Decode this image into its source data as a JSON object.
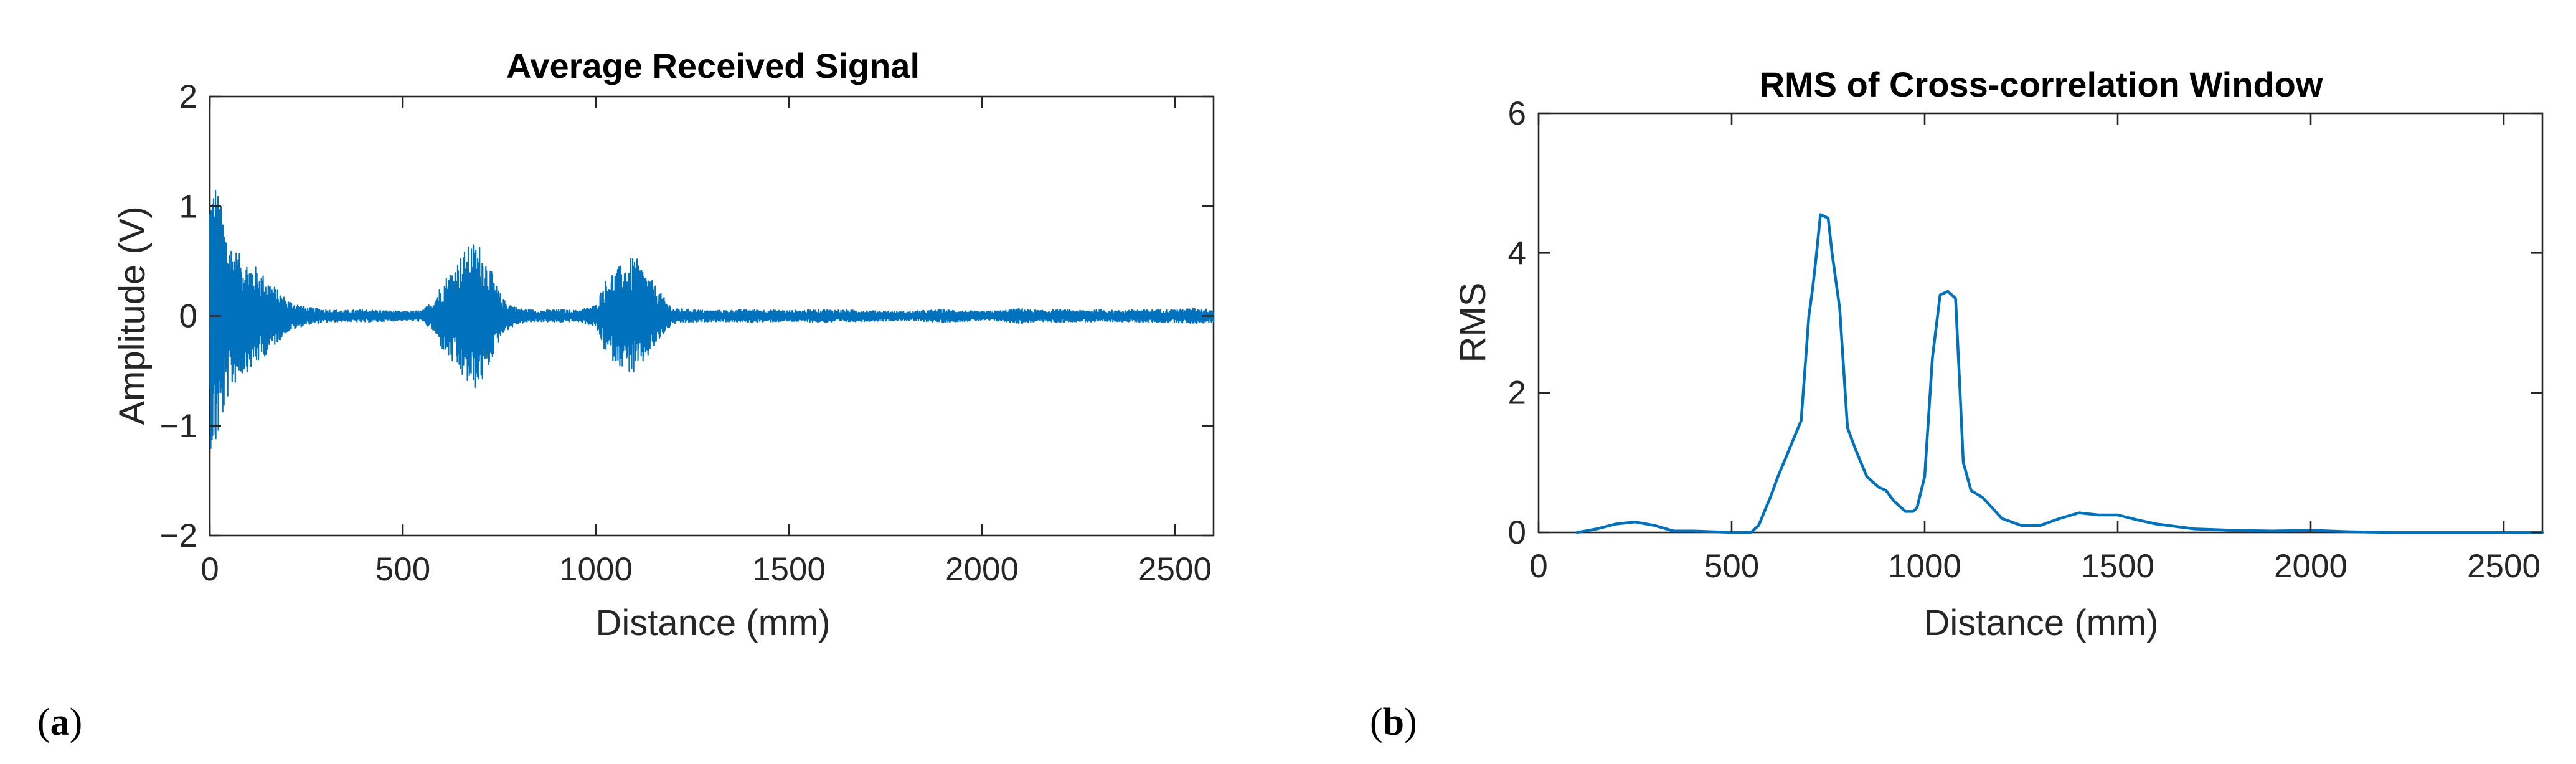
{
  "chart_data": [
    {
      "panel_label": "(a)",
      "panel_letter": "a",
      "type": "line",
      "title": "Average Received Signal",
      "xlabel": "Distance (mm)",
      "ylabel": "Amplitude (V)",
      "xlim": [
        0,
        2600
      ],
      "ylim": [
        -2,
        2
      ],
      "xticks": [
        0,
        500,
        1000,
        1500,
        2000,
        2500
      ],
      "xtick_labels": [
        "0",
        "500",
        "1000",
        "1500",
        "2000",
        "2500"
      ],
      "yticks": [
        -2,
        -1,
        0,
        1,
        2
      ],
      "ytick_labels": [
        "−2",
        "−1",
        "0",
        "1",
        "2"
      ],
      "grid": false,
      "series_color": "#0072BD",
      "series": [
        {
          "style": "oscillating signal, envelope amplitude (V) vs distance (mm)",
          "envelope": {
            "x": [
              0,
              15,
              30,
              50,
              80,
              120,
              160,
              200,
              250,
              300,
              350,
              400,
              450,
              500,
              550,
              580,
              600,
              630,
              660,
              680,
              700,
              720,
              740,
              760,
              800,
              850,
              900,
              950,
              1000,
              1020,
              1040,
              1060,
              1080,
              1100,
              1120,
              1140,
              1160,
              1180,
              1200,
              1250,
              1300,
              1400,
              1500,
              1600,
              1700,
              1800,
              1850,
              1900,
              1950,
              2000,
              2050,
              2100,
              2150,
              2200,
              2250,
              2300,
              2350,
              2400,
              2450,
              2500,
              2550,
              2600
            ],
            "y": [
              1.2,
              1.25,
              1.0,
              0.7,
              0.55,
              0.45,
              0.3,
              0.15,
              0.08,
              0.06,
              0.05,
              0.06,
              0.05,
              0.04,
              0.05,
              0.15,
              0.3,
              0.45,
              0.6,
              0.68,
              0.65,
              0.5,
              0.3,
              0.15,
              0.07,
              0.05,
              0.06,
              0.05,
              0.1,
              0.3,
              0.4,
              0.45,
              0.5,
              0.55,
              0.45,
              0.35,
              0.25,
              0.15,
              0.07,
              0.06,
              0.05,
              0.06,
              0.05,
              0.06,
              0.05,
              0.04,
              0.05,
              0.06,
              0.05,
              0.04,
              0.05,
              0.07,
              0.05,
              0.06,
              0.05,
              0.06,
              0.05,
              0.06,
              0.06,
              0.06,
              0.07,
              0.06
            ]
          }
        }
      ]
    },
    {
      "panel_label": "(b)",
      "panel_letter": "b",
      "type": "line",
      "title": "RMS of Cross-correlation Window",
      "xlabel": "Distance (mm)",
      "ylabel": "RMS",
      "xlim": [
        0,
        2600
      ],
      "ylim": [
        0,
        6
      ],
      "xticks": [
        0,
        500,
        1000,
        1500,
        2000,
        2500
      ],
      "xtick_labels": [
        "0",
        "500",
        "1000",
        "1500",
        "2000",
        "2500"
      ],
      "yticks": [
        0,
        2,
        4,
        6
      ],
      "ytick_labels": [
        "0",
        "2",
        "4",
        "6"
      ],
      "grid": false,
      "series_color": "#0072BD",
      "series": [
        {
          "x": [
            100,
            150,
            200,
            250,
            300,
            350,
            400,
            450,
            500,
            550,
            570,
            600,
            620,
            650,
            680,
            700,
            710,
            720,
            730,
            750,
            760,
            780,
            800,
            820,
            850,
            880,
            900,
            920,
            950,
            970,
            980,
            1000,
            1020,
            1040,
            1060,
            1080,
            1090,
            1100,
            1120,
            1150,
            1200,
            1250,
            1300,
            1350,
            1400,
            1450,
            1500,
            1550,
            1600,
            1700,
            1800,
            1900,
            2000,
            2100,
            2200,
            2300,
            2400,
            2500,
            2600
          ],
          "y": [
            0.0,
            0.05,
            0.12,
            0.15,
            0.1,
            0.02,
            0.02,
            0.01,
            0.0,
            0.0,
            0.1,
            0.5,
            0.8,
            1.2,
            1.6,
            3.1,
            3.5,
            4.0,
            4.55,
            4.5,
            4.0,
            3.2,
            1.5,
            1.2,
            0.8,
            0.65,
            0.6,
            0.45,
            0.3,
            0.3,
            0.35,
            0.8,
            2.5,
            3.4,
            3.45,
            3.35,
            2.2,
            1.0,
            0.6,
            0.5,
            0.2,
            0.1,
            0.1,
            0.2,
            0.28,
            0.25,
            0.25,
            0.18,
            0.12,
            0.05,
            0.03,
            0.02,
            0.03,
            0.01,
            0.0,
            0.0,
            0.0,
            0.0,
            0.0
          ]
        }
      ]
    }
  ]
}
